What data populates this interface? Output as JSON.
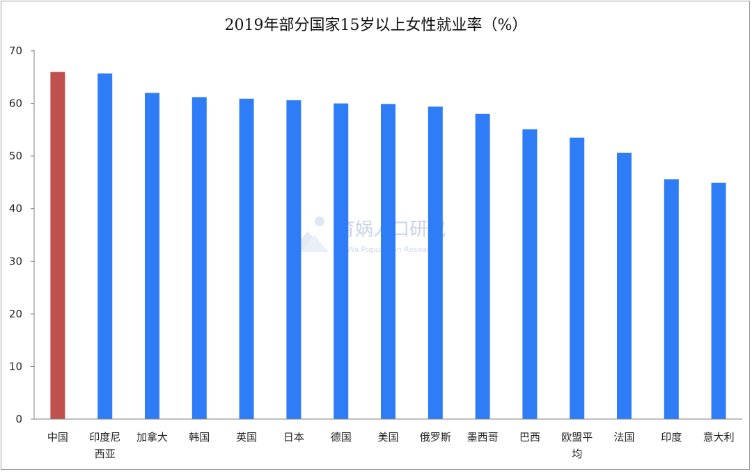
{
  "chart_data": {
    "type": "bar",
    "title": "2019年部分国家15岁以上女性就业率（%）",
    "categories": [
      "中国",
      "印度尼西亚",
      "加拿大",
      "韩国",
      "英国",
      "日本",
      "德国",
      "美国",
      "俄罗斯",
      "墨西哥",
      "巴西",
      "欧盟平均",
      "法国",
      "印度",
      "意大利"
    ],
    "category_lines": [
      [
        "中国"
      ],
      [
        "印度尼",
        "西亚"
      ],
      [
        "加拿大"
      ],
      [
        "韩国"
      ],
      [
        "英国"
      ],
      [
        "日本"
      ],
      [
        "德国"
      ],
      [
        "美国"
      ],
      [
        "俄罗斯"
      ],
      [
        "墨西哥"
      ],
      [
        "巴西"
      ],
      [
        "欧盟平",
        "均"
      ],
      [
        "法国"
      ],
      [
        "印度"
      ],
      [
        "意大利"
      ]
    ],
    "values": [
      66.0,
      65.7,
      62.0,
      61.2,
      60.9,
      60.6,
      60.0,
      59.9,
      59.4,
      58.0,
      55.1,
      53.5,
      50.6,
      45.6,
      44.9
    ],
    "highlight_index": 0,
    "colors": {
      "bar": "#2e7cf6",
      "highlight": "#c0504d",
      "axis": "#7f7f7f"
    },
    "ylim": [
      0,
      70
    ],
    "yticks": [
      0,
      10,
      20,
      30,
      40,
      50,
      60,
      70
    ],
    "xlabel": "",
    "ylabel": "",
    "grid": false,
    "legend": "none"
  },
  "watermark": {
    "text": "育娲人口研究",
    "subtext": "YuWa Population Research"
  }
}
